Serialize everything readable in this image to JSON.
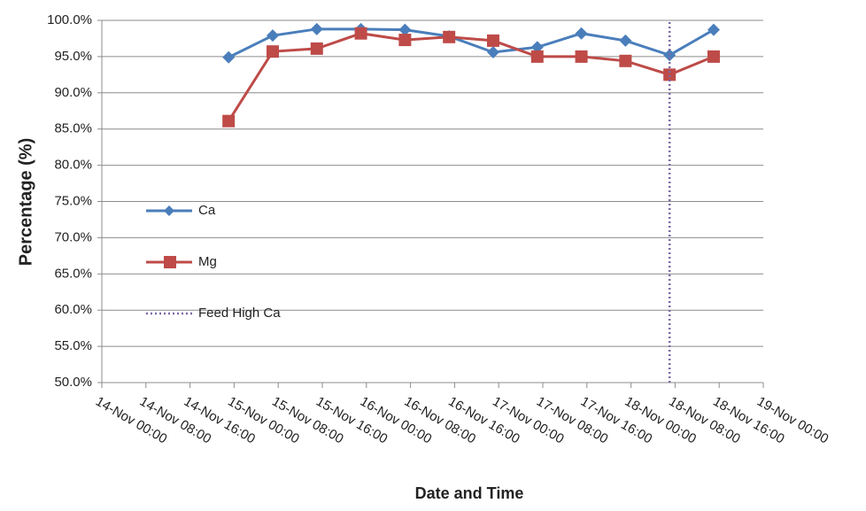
{
  "chart_data": {
    "type": "line",
    "y_label": "Percentage (%)",
    "x_label": "Date and Time",
    "x": [
      "14-Nov 23:00",
      "15-Nov 07:00",
      "15-Nov 15:00",
      "15-Nov 23:00",
      "16-Nov 07:00",
      "16-Nov 15:00",
      "16-Nov 23:00",
      "17-Nov 07:00",
      "17-Nov 15:00",
      "17-Nov 23:00",
      "18-Nov 07:00",
      "18-Nov 15:00"
    ],
    "series": [
      {
        "name": "Ca",
        "color": "#4a7ebb",
        "marker": "diamond",
        "style": "solid",
        "values": [
          94.9,
          97.9,
          98.8,
          98.8,
          98.7,
          97.8,
          95.6,
          96.3,
          98.2,
          97.2,
          95.2,
          98.7
        ]
      },
      {
        "name": "Mg",
        "color": "#be4b48",
        "marker": "square",
        "style": "solid",
        "values": [
          86.1,
          95.7,
          96.1,
          98.2,
          97.3,
          97.7,
          97.2,
          95.0,
          95.0,
          94.4,
          92.5,
          95.0
        ]
      },
      {
        "name": "Feed High Ca",
        "color": "#7b68a6",
        "marker": "none",
        "style": "dotted",
        "x": [
          "18-Nov 07:00",
          "18-Nov 07:00"
        ],
        "values": [
          50,
          100
        ]
      }
    ],
    "xlim": [
      "14-Nov 00:00",
      "19-Nov 00:00"
    ],
    "xticks": [
      "14-Nov 00:00",
      "14-Nov 08:00",
      "14-Nov 16:00",
      "15-Nov 00:00",
      "15-Nov 08:00",
      "15-Nov 16:00",
      "16-Nov 00:00",
      "16-Nov 08:00",
      "16-Nov 16:00",
      "17-Nov 00:00",
      "17-Nov 08:00",
      "17-Nov 16:00",
      "18-Nov 00:00",
      "18-Nov 08:00",
      "18-Nov 16:00",
      "19-Nov 00:00"
    ],
    "ylim": [
      50,
      100
    ],
    "yticks": [
      {
        "value": 50,
        "label": "50.0%"
      },
      {
        "value": 55,
        "label": "55.0%"
      },
      {
        "value": 60,
        "label": "60.0%"
      },
      {
        "value": 65,
        "label": "65.0%"
      },
      {
        "value": 70,
        "label": "70.0%"
      },
      {
        "value": 75,
        "label": "75.0%"
      },
      {
        "value": 80,
        "label": "80.0%"
      },
      {
        "value": 85,
        "label": "85.0%"
      },
      {
        "value": 90,
        "label": "90.0%"
      },
      {
        "value": 95,
        "label": "95.0%"
      },
      {
        "value": 100,
        "label": "100.0%"
      }
    ],
    "grid": true,
    "legend": "left"
  }
}
